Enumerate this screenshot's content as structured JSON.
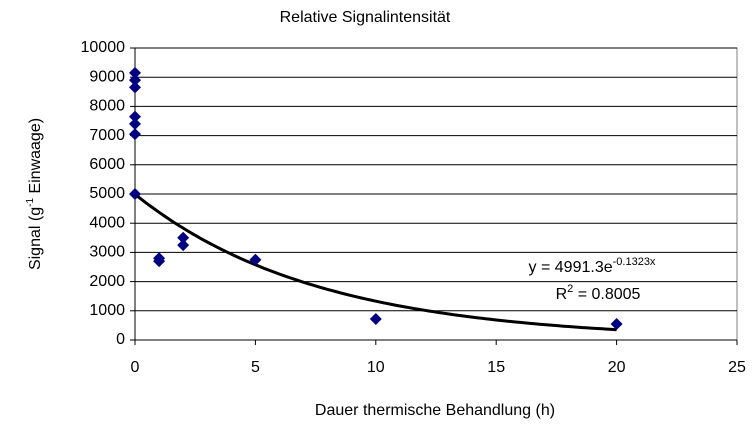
{
  "chart_data": {
    "type": "scatter",
    "title": "Relative Signalintensität",
    "xlabel": "Dauer thermische Behandlung (h)",
    "ylabel": {
      "text": "Signal (g",
      "sup": "-1",
      "rest": " Einwaage)"
    },
    "series": [
      {
        "color": "#000080",
        "x": [
          0,
          0,
          0,
          0,
          0,
          0,
          0,
          1,
          1,
          2,
          2,
          5,
          10,
          20
        ],
        "values": [
          9150,
          8900,
          8650,
          7650,
          7400,
          7050,
          5000,
          2800,
          2700,
          3500,
          3250,
          2750,
          720,
          550
        ]
      }
    ],
    "trendline": {
      "kind": "exponential",
      "a": 4991.3,
      "b": -0.1323,
      "color": "#000000",
      "equation": {
        "text": "y = 4991.3e",
        "sup": "-0.1323x"
      },
      "r2": {
        "text": "R",
        "sup": "2",
        "rest": " = 0.8005"
      }
    },
    "xlim": [
      0,
      25
    ],
    "xticks": [
      0,
      5,
      10,
      15,
      20,
      25
    ],
    "ylim": [
      0,
      10000
    ],
    "yticks": [
      0,
      1000,
      2000,
      3000,
      4000,
      5000,
      6000,
      7000,
      8000,
      9000,
      10000
    ],
    "grid": true
  }
}
